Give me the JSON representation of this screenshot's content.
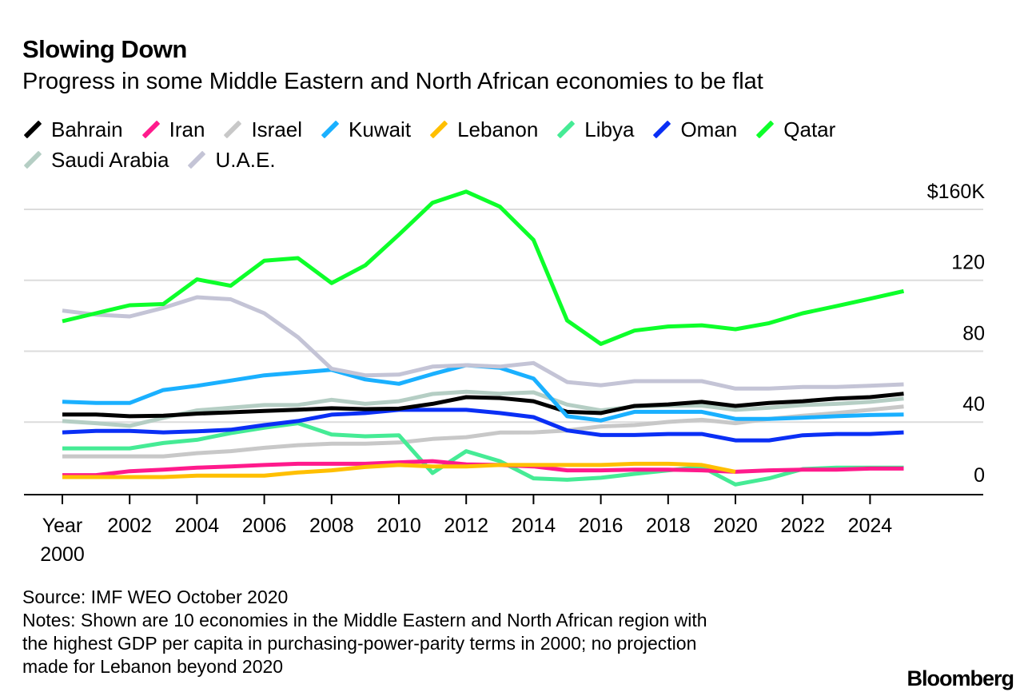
{
  "title": "Slowing Down",
  "subtitle": "Progress in some Middle Eastern and North African economies to be flat",
  "source": "Source: IMF WEO October 2020",
  "notes": [
    "Notes: Shown are 10 economies in the Middle Eastern and North African region with",
    "the highest GDP per capita in purchasing-power-parity terms in 2000; no projection",
    "made for Lebanon beyond 2020"
  ],
  "logo": "Bloomberg",
  "chart_data": {
    "type": "line",
    "title": "Slowing Down",
    "xlabel": "Year",
    "ylabel": "",
    "ylim": [
      0,
      160
    ],
    "y_ticks": [
      "0",
      "40",
      "80",
      "120",
      "$160K"
    ],
    "y_tick_values": [
      0,
      40,
      80,
      120,
      160
    ],
    "x_tick_labels": [
      "2000",
      "2002",
      "2004",
      "2006",
      "2008",
      "2010",
      "2012",
      "2014",
      "2016",
      "2018",
      "2020",
      "2022",
      "2024"
    ],
    "grid": true,
    "legend_position": "top",
    "x": [
      2000,
      2001,
      2002,
      2003,
      2004,
      2005,
      2006,
      2007,
      2008,
      2009,
      2010,
      2011,
      2012,
      2013,
      2014,
      2015,
      2016,
      2017,
      2018,
      2019,
      2020,
      2021,
      2022,
      2023,
      2024,
      2025
    ],
    "series": [
      {
        "name": "Bahrain",
        "color": "#000000",
        "values": [
          44.3,
          44.3,
          43.3,
          43.6,
          44.8,
          45.5,
          46.3,
          47,
          47.8,
          47.3,
          47.6,
          50.3,
          54.1,
          53.6,
          51.8,
          45.8,
          45.1,
          49.1,
          50,
          51.4,
          49.1,
          50.8,
          51.8,
          53.3,
          54.1,
          56
        ]
      },
      {
        "name": "Iran",
        "color": "#ff1a8c",
        "values": [
          10.1,
          10.1,
          12.3,
          13.2,
          14.3,
          15,
          15.8,
          16.5,
          16.5,
          16.5,
          17.3,
          18,
          16.2,
          15.8,
          15,
          12.8,
          12.8,
          13.2,
          13.2,
          12.8,
          12,
          12.8,
          13.2,
          13.2,
          13.8,
          13.8
        ]
      },
      {
        "name": "Israel",
        "color": "#c8c8c8",
        "values": [
          20.7,
          20.7,
          20.7,
          20.7,
          22.5,
          23.6,
          25.5,
          27,
          27.8,
          27.8,
          28.5,
          30.5,
          31.5,
          34.1,
          34.2,
          35.3,
          37.6,
          38.3,
          40.1,
          41.3,
          39.4,
          41.8,
          43.6,
          45.1,
          46.9,
          48.8
        ]
      },
      {
        "name": "Kuwait",
        "color": "#1ab0ff",
        "values": [
          51.5,
          50.8,
          50.8,
          58.1,
          60.5,
          63.4,
          66.4,
          67.9,
          69.5,
          64.1,
          61.6,
          67.1,
          72.1,
          70.6,
          64.6,
          43.3,
          40.9,
          45.8,
          45.8,
          45.8,
          41.8,
          41.8,
          42.5,
          43.3,
          44,
          44.3
        ]
      },
      {
        "name": "Lebanon",
        "color": "#ffbf00",
        "values": [
          9,
          9,
          9,
          9,
          9.8,
          9.8,
          9.8,
          11.6,
          12.8,
          14.7,
          15.8,
          15,
          15,
          15.8,
          15.8,
          15.8,
          15.8,
          16.5,
          16.5,
          15.8,
          12,
          null,
          null,
          null,
          null,
          null
        ]
      },
      {
        "name": "Libya",
        "color": "#45eb95",
        "values": [
          25.2,
          25.2,
          25.2,
          28.2,
          30,
          33.8,
          36.8,
          39.4,
          33,
          32,
          32.6,
          11.3,
          23.6,
          18,
          8.3,
          7.5,
          8.6,
          10.8,
          12.8,
          14.7,
          4.8,
          8.3,
          13.5,
          14.3,
          14.3,
          14.3
        ]
      },
      {
        "name": "Oman",
        "color": "#0a2ff5",
        "values": [
          34.2,
          35,
          35,
          34.2,
          34.8,
          35.7,
          38.3,
          40.6,
          44.2,
          45.1,
          46.9,
          46.9,
          46.9,
          45.1,
          42.8,
          35.3,
          32.7,
          32.7,
          33.3,
          33.3,
          29.7,
          29.7,
          32.6,
          33.3,
          33.3,
          34.2
        ]
      },
      {
        "name": "Qatar",
        "color": "#0dff2a",
        "values": [
          96.9,
          101.4,
          105.9,
          106.6,
          120.5,
          116.9,
          131,
          132.5,
          118.4,
          128.4,
          145.7,
          163.7,
          170,
          161.5,
          142.7,
          97.3,
          84.1,
          91.6,
          93.9,
          94.6,
          92.4,
          95.8,
          101.4,
          105.4,
          109.6,
          113.9
        ]
      },
      {
        "name": "Saudi Arabia",
        "color": "#b5cec4",
        "values": [
          40.6,
          39.4,
          37.9,
          42.4,
          46.6,
          48.1,
          49.6,
          49.6,
          52.6,
          50.3,
          51.8,
          55.9,
          57.1,
          56,
          56.8,
          49.9,
          46.6,
          48.8,
          49.3,
          49.3,
          46.9,
          48.1,
          49.6,
          50.3,
          51.4,
          53.3
        ]
      },
      {
        "name": "U.A.E.",
        "color": "#c4c4d6",
        "values": [
          102.9,
          100.6,
          99.6,
          104.4,
          110.4,
          109.3,
          101.4,
          87.9,
          70.1,
          66.4,
          66.8,
          71.3,
          72.1,
          71.3,
          73.3,
          62.6,
          60.8,
          63.1,
          63.1,
          63.1,
          58.9,
          58.9,
          59.8,
          59.8,
          60.5,
          61.3
        ]
      }
    ]
  }
}
